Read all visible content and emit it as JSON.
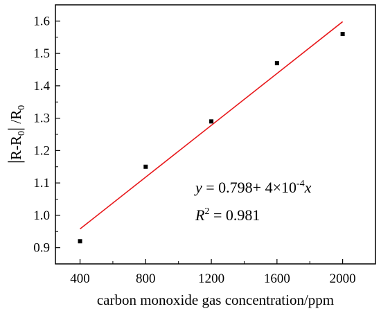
{
  "chart_data": {
    "type": "scatter",
    "xlabel": "carbon monoxide gas concentration/ppm",
    "ylabel": {
      "bar_left": "|",
      "r1": "R-R",
      "sub1": "0",
      "bar_right": "|",
      "slash": " /R",
      "sub2": "0"
    },
    "xlim": [
      250,
      2200
    ],
    "ylim": [
      0.85,
      1.65
    ],
    "xticks": [
      400,
      800,
      1200,
      1600,
      2000
    ],
    "yticks": [
      0.9,
      1.0,
      1.1,
      1.2,
      1.3,
      1.4,
      1.5,
      1.6
    ],
    "ytick_labels": [
      "0.9",
      "1.0",
      "1.1",
      "1.2",
      "1.3",
      "1.4",
      "1.5",
      "1.6"
    ],
    "grid": false,
    "points": [
      {
        "x": 400,
        "y": 0.92
      },
      {
        "x": 800,
        "y": 1.15
      },
      {
        "x": 1200,
        "y": 1.29
      },
      {
        "x": 1600,
        "y": 1.47
      },
      {
        "x": 2000,
        "y": 1.56
      }
    ],
    "fit_line": {
      "intercept": 0.798,
      "slope": 0.0004,
      "x_range": [
        400,
        2000
      ],
      "color": "#e8191c"
    },
    "annotation": {
      "eq_y": "y",
      "eq_mid": " = 0.798+ 4×10",
      "eq_exp": "-4",
      "eq_x": "x",
      "r_label": "R",
      "r_exp": "2",
      "r_value": " = 0.981"
    },
    "marker_color": "#000000"
  }
}
